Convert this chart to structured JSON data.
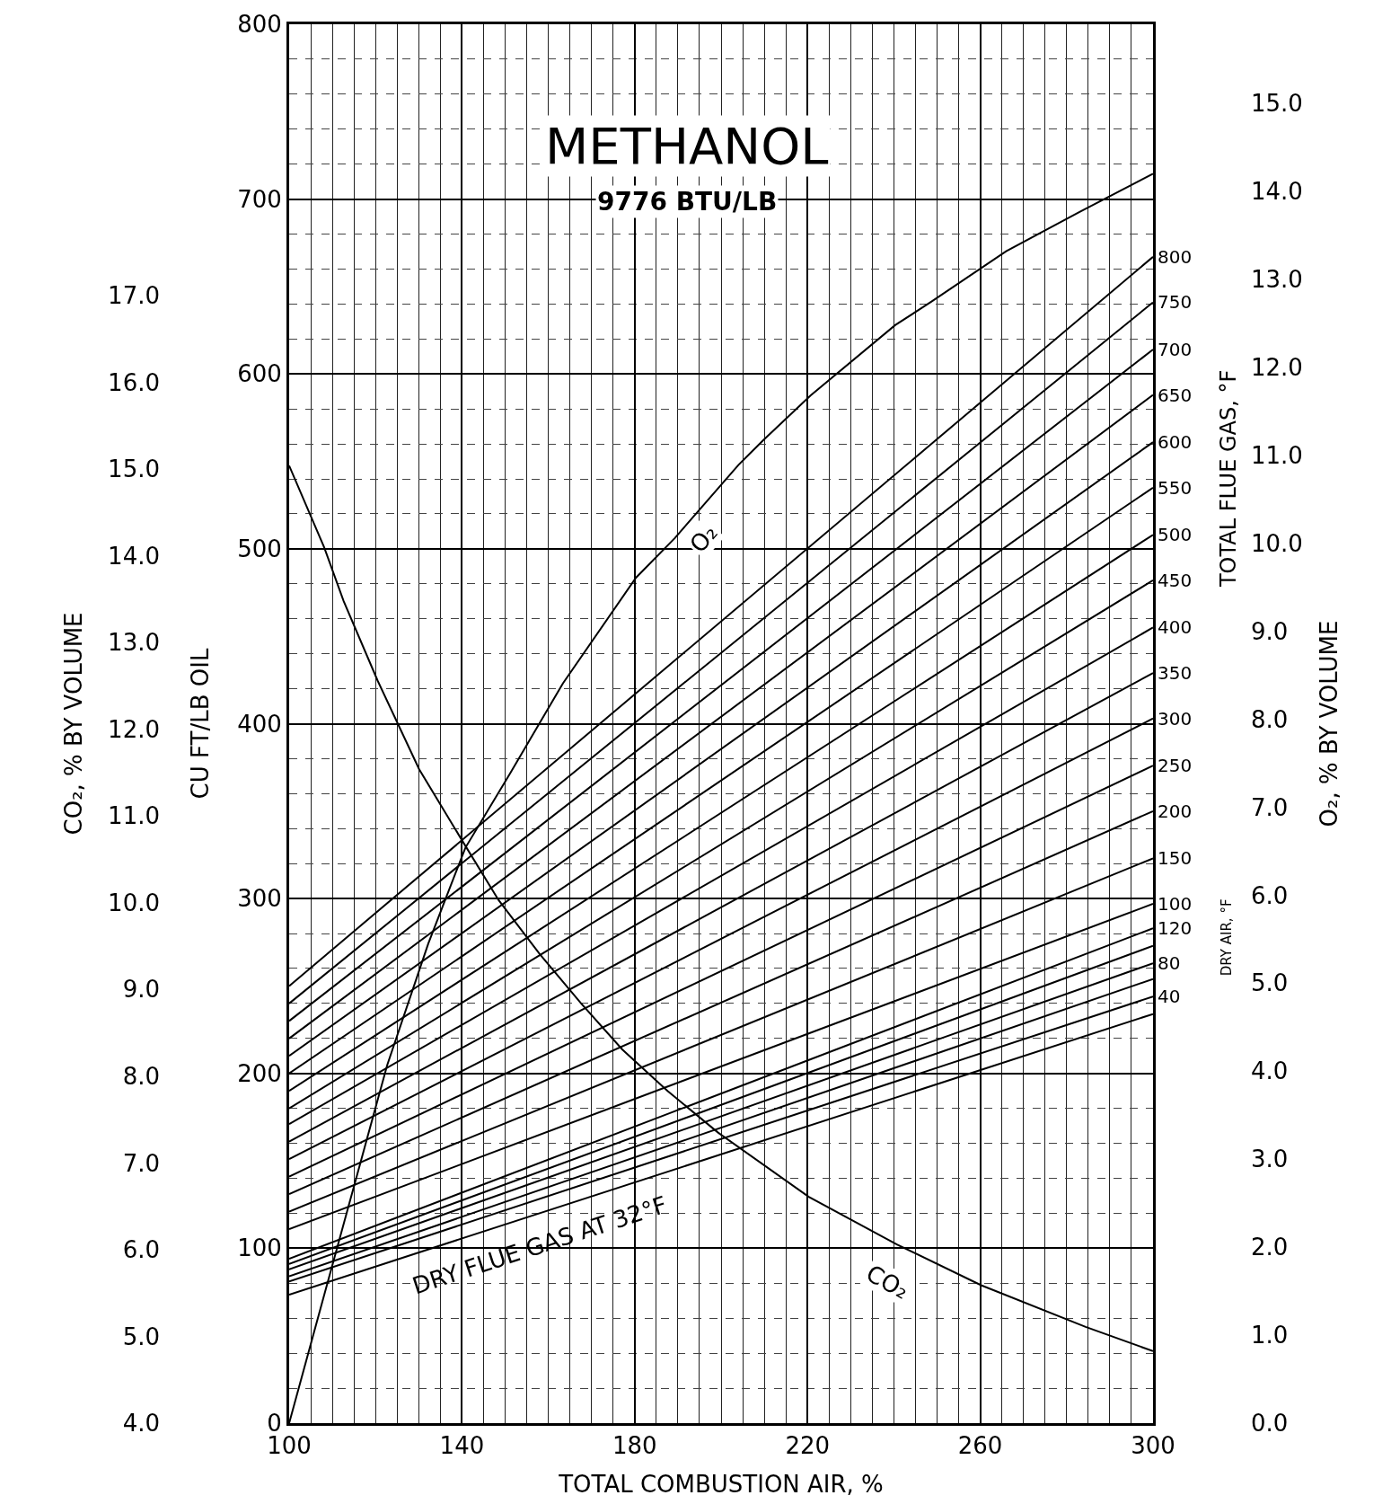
{
  "chart_data": {
    "type": "line",
    "title": "METHANOL",
    "subtitle": "9776 BTU/LB",
    "xlabel": "TOTAL COMBUSTION AIR, %",
    "ylabel": "CU FT/LB OIL",
    "y2label": "O₂, % BY VOLUME",
    "y3label": "CO₂, % BY VOLUME",
    "xlim": [
      100,
      300
    ],
    "xticks": [
      100,
      140,
      180,
      220,
      260,
      300
    ],
    "ylim": [
      0,
      800
    ],
    "yticks": [
      0,
      100,
      200,
      300,
      400,
      500,
      600,
      700,
      800
    ],
    "y2lim": [
      0,
      15.9
    ],
    "y2ticks": [
      {
        "value": 0,
        "label": "0.0"
      },
      {
        "value": 1,
        "label": "1.0"
      },
      {
        "value": 2,
        "label": "2.0"
      },
      {
        "value": 3,
        "label": "3.0"
      },
      {
        "value": 4,
        "label": "4.0"
      },
      {
        "value": 5,
        "label": "5.0"
      },
      {
        "value": 6,
        "label": "6.0"
      },
      {
        "value": 7,
        "label": "7.0"
      },
      {
        "value": 8,
        "label": "8.0"
      },
      {
        "value": 9,
        "label": "9.0"
      },
      {
        "value": 10,
        "label": "10.0"
      },
      {
        "value": 11,
        "label": "11.0"
      },
      {
        "value": 12,
        "label": "12.0"
      },
      {
        "value": 13,
        "label": "13.0"
      },
      {
        "value": 14,
        "label": "14.0"
      },
      {
        "value": 15,
        "label": "15.0"
      }
    ],
    "y3lim": [
      4,
      20.13
    ],
    "y3ticks": [
      {
        "value": 4,
        "label": "4.0"
      },
      {
        "value": 5,
        "label": "5.0"
      },
      {
        "value": 6,
        "label": "6.0"
      },
      {
        "value": 7,
        "label": "7.0"
      },
      {
        "value": 8,
        "label": "8.0"
      },
      {
        "value": 9,
        "label": "9.0"
      },
      {
        "value": 10,
        "label": "10.0"
      },
      {
        "value": 11,
        "label": "11.0"
      },
      {
        "value": 12,
        "label": "12.0"
      },
      {
        "value": 13,
        "label": "13.0"
      },
      {
        "value": 14,
        "label": "14.0"
      },
      {
        "value": 15,
        "label": "15.0"
      },
      {
        "value": 16,
        "label": "16.0"
      },
      {
        "value": 17,
        "label": "17.0"
      }
    ],
    "grid": true,
    "legend": false,
    "series": [
      {
        "name": "800",
        "color": "#000000",
        "x": [
          100,
          300
        ],
        "values": [
          250,
          667
        ]
      },
      {
        "name": "750",
        "color": "#000000",
        "x": [
          100,
          300
        ],
        "values": [
          240,
          641
        ]
      },
      {
        "name": "700",
        "color": "#000000",
        "x": [
          100,
          300
        ],
        "values": [
          230,
          614
        ]
      },
      {
        "name": "650",
        "color": "#000000",
        "x": [
          100,
          300
        ],
        "values": [
          220,
          588
        ]
      },
      {
        "name": "600",
        "color": "#000000",
        "x": [
          100,
          300
        ],
        "values": [
          210,
          561
        ]
      },
      {
        "name": "550",
        "color": "#000000",
        "x": [
          100,
          300
        ],
        "values": [
          200,
          535
        ]
      },
      {
        "name": "500",
        "color": "#000000",
        "x": [
          100,
          300
        ],
        "values": [
          190,
          508
        ]
      },
      {
        "name": "450",
        "color": "#000000",
        "x": [
          100,
          300
        ],
        "values": [
          180,
          482
        ]
      },
      {
        "name": "400",
        "color": "#000000",
        "x": [
          100,
          300
        ],
        "values": [
          171,
          455
        ]
      },
      {
        "name": "350",
        "color": "#000000",
        "x": [
          100,
          300
        ],
        "values": [
          161,
          429
        ]
      },
      {
        "name": "300",
        "color": "#000000",
        "x": [
          100,
          300
        ],
        "values": [
          151,
          403
        ]
      },
      {
        "name": "250",
        "color": "#000000",
        "x": [
          100,
          300
        ],
        "values": [
          141,
          376
        ]
      },
      {
        "name": "200",
        "color": "#000000",
        "x": [
          100,
          300
        ],
        "values": [
          131,
          350
        ]
      },
      {
        "name": "150",
        "color": "#000000",
        "x": [
          100,
          300
        ],
        "values": [
          121,
          323
        ]
      },
      {
        "name": "100",
        "color": "#000000",
        "x": [
          100,
          300
        ],
        "values": [
          111,
          297
        ]
      },
      {
        "name": "120",
        "color": "#000000",
        "x": [
          100,
          300
        ],
        "values": [
          94,
          283
        ]
      },
      {
        "color": "#000000",
        "x": [
          100,
          300
        ],
        "values": [
          91,
          273
        ]
      },
      {
        "name": "80",
        "color": "#000000",
        "x": [
          100,
          300
        ],
        "values": [
          88,
          263
        ]
      },
      {
        "color": "#000000",
        "x": [
          100,
          300
        ],
        "values": [
          84,
          254
        ]
      },
      {
        "name": "40",
        "color": "#000000",
        "x": [
          100,
          300
        ],
        "values": [
          81,
          244
        ]
      },
      {
        "color": "#000000",
        "x": [
          100,
          300
        ],
        "values": [
          73.5,
          234
        ]
      },
      {
        "color": "#000000",
        "axis": "y2",
        "x": [
          100,
          108.8,
          116.5,
          122.7,
          132.2,
          140.8,
          151.1,
          163.4,
          180.3,
          189.3,
          204,
          209.7,
          220.7,
          240.3,
          248.8,
          266,
          283.1,
          300
        ],
        "values": [
          0,
          1.58,
          2.96,
          4.07,
          5.45,
          6.54,
          7.38,
          8.41,
          9.61,
          10.06,
          10.89,
          11.17,
          11.68,
          12.48,
          12.75,
          13.32,
          13.77,
          14.2
        ]
      },
      {
        "color": "#000000",
        "axis": "y3",
        "x": [
          100,
          108.1,
          112.6,
          120.5,
          130.1,
          139.9,
          148.5,
          158,
          167.6,
          177.1,
          187.6,
          199.3,
          220.3,
          240.7,
          260.2,
          284.4,
          300
        ],
        "values": [
          15.04,
          14.1,
          13.48,
          12.56,
          11.54,
          10.73,
          10.03,
          9.41,
          8.84,
          8.31,
          7.83,
          7.35,
          6.61,
          6.06,
          5.59,
          5.11,
          4.83
        ]
      }
    ],
    "annotations": [
      "TOTAL FLUE GAS, °F",
      "DRY AIR, °F",
      "O₂",
      "CO₂",
      "DRY FLUE GAS AT 32°F"
    ]
  }
}
